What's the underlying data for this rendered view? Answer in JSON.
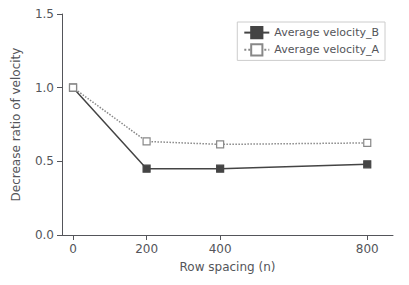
{
  "chart_data": {
    "type": "line",
    "x_label": "Row spacing (n)",
    "y_label": "Decrease ratio of velocity",
    "x": [
      0,
      200,
      400,
      800
    ],
    "series": [
      {
        "name": "Average velocity_B",
        "color": "#444444",
        "marker": "square",
        "line_style": "solid",
        "values": [
          1.0,
          0.45,
          0.45,
          0.48
        ]
      },
      {
        "name": "Average velocity_A",
        "color": "#888888",
        "marker": "open_square",
        "line_style": "dotted",
        "values": [
          1.0,
          0.635,
          0.615,
          0.625
        ]
      }
    ],
    "xlim": [
      -30,
      870
    ],
    "xticks": [
      0,
      200,
      400,
      800
    ],
    "ylim": [
      0.0,
      1.5
    ],
    "yticks": [
      {
        "value": 0,
        "label": "0.0"
      },
      0.5,
      {
        "value": 1,
        "label": "1.0"
      },
      1.5
    ],
    "grid": false,
    "legend": "upper right"
  }
}
